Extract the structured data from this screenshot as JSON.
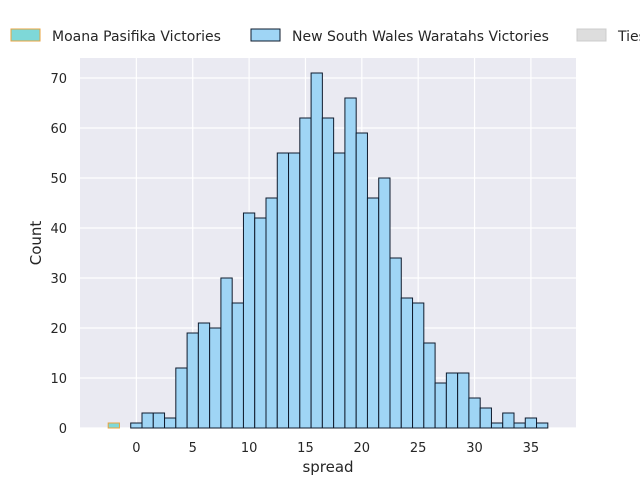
{
  "chart_data": {
    "type": "bar",
    "xlabel": "spread",
    "ylabel": "Count",
    "xlim": [
      -5,
      39
    ],
    "ylim": [
      0,
      74
    ],
    "xticks": [
      0,
      5,
      10,
      15,
      20,
      25,
      30,
      35
    ],
    "yticks": [
      0,
      10,
      20,
      30,
      40,
      50,
      60,
      70
    ],
    "grid": true,
    "legend_position": "top",
    "series": [
      {
        "name": "Moana Pasifika Victories",
        "color": "#7ed8d8",
        "edge_color": "#e8a33d",
        "bin_width": 1,
        "bin_starts": [
          -2.5
        ],
        "counts": [
          1
        ]
      },
      {
        "name": "New South Wales Waratahs Victories",
        "color": "#9fd5f5",
        "edge_color": "#0f1b2d",
        "bin_width": 1,
        "bin_starts": [
          -0.5,
          0.5,
          1.5,
          2.5,
          3.5,
          4.5,
          5.5,
          6.5,
          7.5,
          8.5,
          9.5,
          10.5,
          11.5,
          12.5,
          13.5,
          14.5,
          15.5,
          16.5,
          17.5,
          18.5,
          19.5,
          20.5,
          21.5,
          22.5,
          23.5,
          24.5,
          25.5,
          26.5,
          27.5,
          28.5,
          29.5,
          30.5,
          31.5,
          32.5,
          33.5,
          34.5,
          35.5
        ],
        "counts": [
          1,
          3,
          3,
          2,
          12,
          19,
          21,
          20,
          30,
          25,
          43,
          42,
          46,
          55,
          55,
          62,
          71,
          62,
          55,
          66,
          59,
          46,
          50,
          34,
          26,
          25,
          17,
          9,
          11,
          11,
          6,
          4,
          1,
          3,
          1,
          2,
          1
        ]
      },
      {
        "name": "Ties",
        "color": "#dddddd",
        "edge_color": "#cccccc",
        "bin_width": 1,
        "bin_starts": [],
        "counts": []
      }
    ]
  }
}
